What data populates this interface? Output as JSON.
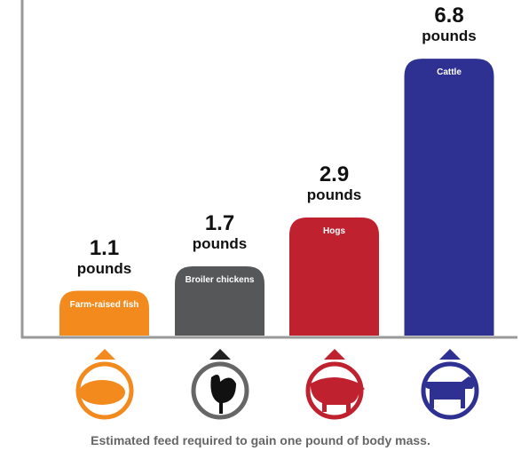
{
  "chart_data": {
    "type": "bar",
    "caption": "Estimated feed required to gain one pound of body mass.",
    "categories": [
      "Farm-raised fish",
      "Broiler chickens",
      "Hogs",
      "Cattle"
    ],
    "values": [
      1.1,
      1.7,
      2.9,
      6.8
    ],
    "value_unit": "pounds",
    "colors": [
      "#f28a1e",
      "#555759",
      "#c0212f",
      "#2e3192"
    ],
    "ylim": [
      0,
      7.5
    ]
  }
}
